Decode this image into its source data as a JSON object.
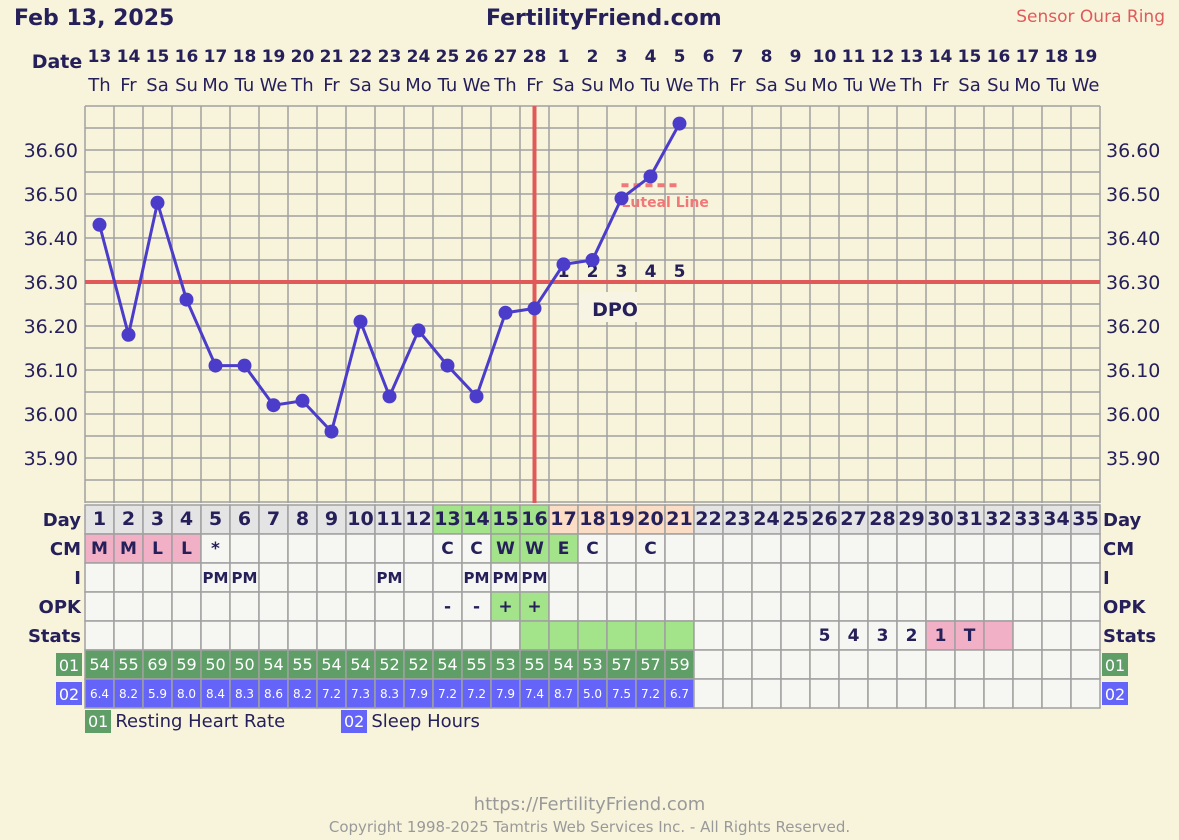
{
  "header": {
    "date": "Feb 13, 2025",
    "site": "FertilityFriend.com",
    "sensor": "Sensor Oura Ring"
  },
  "labels": {
    "date": "Date",
    "day": "Day",
    "cm": "CM",
    "i": "I",
    "opk": "OPK",
    "stats": "Stats",
    "rhr": "01",
    "sleep": "02",
    "dpo": "DPO",
    "luteal": "Luteal Line"
  },
  "legend": {
    "rhr_code": "01",
    "rhr_label": "Resting Heart Rate",
    "sleep_code": "02",
    "sleep_label": "Sleep Hours"
  },
  "footer": {
    "url": "https://FertilityFriend.com",
    "copyright": "Copyright 1998-2025 Tamtris Web Services Inc. - All Rights Reserved."
  },
  "colors": {
    "temp_line": "#4b3dc9",
    "coverline": "#e05a5a",
    "luteal": "#f07878",
    "fertile_green": "#a3e38a",
    "luteal_peach": "#fbdcc4",
    "menses_pink": "#f2b0c6",
    "rhr_green": "#5f9e67",
    "sleep_blue": "#6464f8"
  },
  "chart_data": {
    "type": "line",
    "ylim": [
      35.8,
      36.7
    ],
    "yticks": [
      "36.60",
      "36.50",
      "36.40",
      "36.30",
      "36.20",
      "36.10",
      "36.00",
      "35.90"
    ],
    "grid": true,
    "dates": [
      "13",
      "14",
      "15",
      "16",
      "17",
      "18",
      "19",
      "20",
      "21",
      "22",
      "23",
      "24",
      "25",
      "26",
      "27",
      "28",
      "1",
      "2",
      "3",
      "4",
      "5",
      "6",
      "7",
      "8",
      "9",
      "10",
      "11",
      "12",
      "13",
      "14",
      "15",
      "16",
      "17",
      "18",
      "19"
    ],
    "weekdays": [
      "Th",
      "Fr",
      "Sa",
      "Su",
      "Mo",
      "Tu",
      "We",
      "Th",
      "Fr",
      "Sa",
      "Su",
      "Mo",
      "Tu",
      "We",
      "Th",
      "Fr",
      "Sa",
      "Su",
      "Mo",
      "Tu",
      "We",
      "Th",
      "Fr",
      "Sa",
      "Su",
      "Mo",
      "Tu",
      "We",
      "Th",
      "Fr",
      "Sa",
      "Su",
      "Mo",
      "Tu",
      "We"
    ],
    "days": [
      1,
      2,
      3,
      4,
      5,
      6,
      7,
      8,
      9,
      10,
      11,
      12,
      13,
      14,
      15,
      16,
      17,
      18,
      19,
      20,
      21,
      22,
      23,
      24,
      25,
      26,
      27,
      28,
      29,
      30,
      31,
      32,
      33,
      34,
      35
    ],
    "temperatures": [
      36.43,
      36.18,
      36.48,
      36.26,
      36.11,
      36.11,
      36.02,
      36.03,
      35.96,
      36.21,
      36.04,
      36.19,
      36.11,
      36.04,
      36.23,
      36.24,
      36.34,
      36.35,
      36.49,
      36.54,
      36.66
    ],
    "coverline": 36.3,
    "ovulation_day": 16,
    "luteal_line": {
      "value": 36.52,
      "from_day": 19,
      "to_day": 21
    },
    "dpo_labels": [
      "1",
      "2",
      "3",
      "4",
      "5"
    ],
    "day_highlight": {
      "fertile": [
        13,
        14,
        15,
        16
      ],
      "luteal": [
        17,
        18,
        19,
        20,
        21
      ]
    },
    "cm": {
      "1": "M",
      "2": "M",
      "3": "L",
      "4": "L",
      "5": "*",
      "13": "C",
      "14": "C",
      "15": "W",
      "16": "W",
      "17": "E",
      "18": "C",
      "20": "C"
    },
    "cm_pink": [
      1,
      2,
      3,
      4
    ],
    "cm_green": [
      15,
      16,
      17
    ],
    "intercourse": {
      "5": "PM",
      "6": "PM",
      "11": "PM",
      "14": "PM",
      "15": "PM",
      "16": "PM"
    },
    "opk": {
      "13": "-",
      "14": "-",
      "15": "+",
      "16": "+"
    },
    "opk_green": [
      15,
      16
    ],
    "stats": {
      "26": "5",
      "27": "4",
      "28": "3",
      "29": "2",
      "30": "1",
      "31": "T"
    },
    "stats_green": [
      16,
      17,
      18,
      19,
      20,
      21
    ],
    "stats_pink": [
      30,
      31,
      32
    ],
    "resting_heart_rate": [
      54,
      55,
      69,
      59,
      50,
      50,
      54,
      55,
      54,
      54,
      52,
      52,
      54,
      55,
      53,
      55,
      54,
      53,
      57,
      57,
      59
    ],
    "sleep_hours": [
      "6.4",
      "8.2",
      "5.9",
      "8.0",
      "8.4",
      "8.3",
      "8.6",
      "8.2",
      "7.2",
      "7.3",
      "8.3",
      "7.9",
      "7.2",
      "7.2",
      "7.9",
      "7.4",
      "8.7",
      "5.0",
      "7.5",
      "7.2",
      "6.7"
    ]
  }
}
